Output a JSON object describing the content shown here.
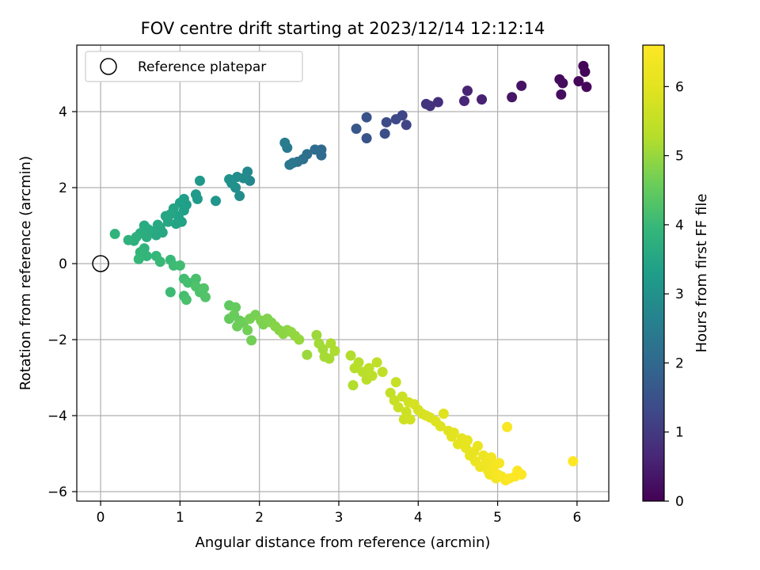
{
  "chart_data": {
    "type": "scatter",
    "title": "FOV centre drift starting at 2023/12/14 12:12:14",
    "xlabel": "Angular distance from reference (arcmin)",
    "ylabel": "Rotation from reference (arcmin)",
    "xlim": [
      -0.3,
      6.4
    ],
    "ylim": [
      -6.25,
      5.75
    ],
    "xticks": [
      0,
      1,
      2,
      3,
      4,
      5,
      6
    ],
    "yticks": [
      -6,
      -4,
      -2,
      0,
      2,
      4
    ],
    "grid": true,
    "legend": {
      "placement": "upper-left",
      "entries": [
        "Reference platepar"
      ]
    },
    "reference_point": {
      "x": 0,
      "y": 0,
      "label": "Reference platepar"
    },
    "colorbar": {
      "label": "Hours from first FF file",
      "colormap": "viridis",
      "range": [
        0,
        6.6
      ],
      "ticks": [
        0,
        1,
        2,
        3,
        4,
        5,
        6
      ]
    },
    "series": [
      {
        "colorscale_value": "hours",
        "points": [
          [
            6.08,
            5.2,
            0.05
          ],
          [
            6.1,
            5.05,
            0.08
          ],
          [
            6.02,
            4.8,
            0.1
          ],
          [
            6.12,
            4.65,
            0.12
          ],
          [
            5.78,
            4.85,
            0.15
          ],
          [
            5.82,
            4.75,
            0.18
          ],
          [
            5.8,
            4.45,
            0.2
          ],
          [
            5.3,
            4.68,
            0.3
          ],
          [
            5.18,
            4.38,
            0.35
          ],
          [
            4.8,
            4.32,
            0.55
          ],
          [
            4.62,
            4.55,
            0.6
          ],
          [
            4.58,
            4.28,
            0.65
          ],
          [
            4.25,
            4.25,
            0.8
          ],
          [
            4.15,
            4.15,
            0.85
          ],
          [
            4.1,
            4.2,
            0.9
          ],
          [
            3.85,
            3.65,
            1.2
          ],
          [
            3.8,
            3.9,
            1.25
          ],
          [
            3.72,
            3.8,
            1.3
          ],
          [
            3.6,
            3.72,
            1.35
          ],
          [
            3.58,
            3.42,
            1.4
          ],
          [
            3.35,
            3.85,
            1.5
          ],
          [
            3.35,
            3.3,
            1.55
          ],
          [
            3.22,
            3.55,
            1.6
          ],
          [
            2.78,
            3.0,
            2.0
          ],
          [
            2.78,
            2.85,
            2.05
          ],
          [
            2.7,
            3.0,
            2.1
          ],
          [
            2.6,
            2.88,
            2.15
          ],
          [
            2.55,
            2.75,
            2.2
          ],
          [
            2.48,
            2.68,
            2.25
          ],
          [
            2.42,
            2.65,
            2.3
          ],
          [
            2.38,
            2.6,
            2.35
          ],
          [
            2.35,
            3.05,
            2.4
          ],
          [
            2.32,
            3.18,
            2.45
          ],
          [
            1.88,
            2.18,
            2.75
          ],
          [
            1.85,
            2.42,
            2.8
          ],
          [
            1.8,
            2.25,
            2.85
          ],
          [
            1.75,
            1.78,
            2.9
          ],
          [
            1.72,
            2.28,
            2.9
          ],
          [
            1.7,
            2.0,
            2.95
          ],
          [
            1.65,
            2.12,
            3.0
          ],
          [
            1.62,
            2.22,
            3.0
          ],
          [
            1.45,
            1.65,
            3.1
          ],
          [
            1.25,
            2.18,
            3.15
          ],
          [
            1.2,
            1.82,
            3.2
          ],
          [
            1.22,
            1.7,
            3.2
          ],
          [
            1.05,
            1.7,
            3.3
          ],
          [
            1.08,
            1.55,
            3.3
          ],
          [
            1.0,
            1.6,
            3.35
          ],
          [
            1.05,
            1.4,
            3.35
          ],
          [
            0.98,
            1.25,
            3.4
          ],
          [
            1.02,
            1.1,
            3.4
          ],
          [
            0.92,
            1.45,
            3.45
          ],
          [
            0.95,
            1.05,
            3.45
          ],
          [
            0.88,
            1.3,
            3.5
          ],
          [
            0.85,
            1.1,
            3.5
          ],
          [
            0.82,
            1.25,
            3.5
          ],
          [
            0.78,
            0.82,
            3.55
          ],
          [
            0.75,
            0.95,
            3.55
          ],
          [
            0.72,
            1.02,
            3.6
          ],
          [
            0.7,
            0.75,
            3.6
          ],
          [
            0.65,
            0.85,
            3.6
          ],
          [
            0.6,
            0.9,
            3.65
          ],
          [
            0.55,
            1.0,
            3.65
          ],
          [
            0.58,
            0.7,
            3.7
          ],
          [
            0.5,
            0.8,
            3.7
          ],
          [
            0.45,
            0.7,
            3.75
          ],
          [
            0.42,
            0.6,
            3.75
          ],
          [
            0.35,
            0.62,
            3.8
          ],
          [
            0.18,
            0.78,
            3.85
          ],
          [
            0.55,
            0.4,
            3.85
          ],
          [
            0.5,
            0.3,
            3.9
          ],
          [
            0.58,
            0.2,
            3.9
          ],
          [
            0.48,
            0.12,
            3.95
          ],
          [
            0.7,
            0.2,
            3.95
          ],
          [
            0.75,
            0.05,
            4.0
          ],
          [
            0.88,
            0.1,
            4.0
          ],
          [
            0.92,
            -0.05,
            4.05
          ],
          [
            0.88,
            -0.75,
            4.05
          ],
          [
            1.0,
            -0.05,
            4.1
          ],
          [
            1.05,
            -0.4,
            4.1
          ],
          [
            1.1,
            -0.5,
            4.15
          ],
          [
            1.05,
            -0.85,
            4.15
          ],
          [
            1.08,
            -0.95,
            4.2
          ],
          [
            1.2,
            -0.4,
            4.2
          ],
          [
            1.2,
            -0.6,
            4.25
          ],
          [
            1.25,
            -0.75,
            4.25
          ],
          [
            1.3,
            -0.65,
            4.3
          ],
          [
            1.32,
            -0.88,
            4.3
          ],
          [
            1.62,
            -1.1,
            4.45
          ],
          [
            1.7,
            -1.15,
            4.5
          ],
          [
            1.62,
            -1.45,
            4.5
          ],
          [
            1.68,
            -1.35,
            4.55
          ],
          [
            1.75,
            -1.5,
            4.55
          ],
          [
            1.72,
            -1.65,
            4.6
          ],
          [
            1.8,
            -1.55,
            4.6
          ],
          [
            1.85,
            -1.75,
            4.65
          ],
          [
            1.9,
            -2.02,
            4.65
          ],
          [
            1.88,
            -1.45,
            4.7
          ],
          [
            1.95,
            -1.35,
            4.7
          ],
          [
            2.02,
            -1.5,
            4.75
          ],
          [
            2.05,
            -1.6,
            4.75
          ],
          [
            2.1,
            -1.45,
            4.8
          ],
          [
            2.15,
            -1.55,
            4.8
          ],
          [
            2.2,
            -1.65,
            4.85
          ],
          [
            2.25,
            -1.75,
            4.85
          ],
          [
            2.3,
            -1.85,
            4.9
          ],
          [
            2.35,
            -1.75,
            4.9
          ],
          [
            2.4,
            -1.8,
            4.95
          ],
          [
            2.45,
            -1.9,
            4.95
          ],
          [
            2.5,
            -2.0,
            5.0
          ],
          [
            2.6,
            -2.4,
            5.05
          ],
          [
            2.72,
            -1.88,
            5.05
          ],
          [
            2.75,
            -2.1,
            5.1
          ],
          [
            2.8,
            -2.25,
            5.1
          ],
          [
            2.82,
            -2.45,
            5.15
          ],
          [
            2.88,
            -2.5,
            5.15
          ],
          [
            2.9,
            -2.1,
            5.2
          ],
          [
            2.95,
            -2.3,
            5.2
          ],
          [
            3.15,
            -2.42,
            5.25
          ],
          [
            3.18,
            -3.2,
            5.25
          ],
          [
            3.2,
            -2.75,
            5.3
          ],
          [
            3.25,
            -2.6,
            5.3
          ],
          [
            3.3,
            -2.85,
            5.35
          ],
          [
            3.35,
            -3.05,
            5.35
          ],
          [
            3.38,
            -2.75,
            5.4
          ],
          [
            3.42,
            -2.95,
            5.4
          ],
          [
            3.48,
            -2.6,
            5.45
          ],
          [
            3.55,
            -2.85,
            5.45
          ],
          [
            3.65,
            -3.4,
            5.5
          ],
          [
            3.7,
            -3.6,
            5.55
          ],
          [
            3.72,
            -3.12,
            5.55
          ],
          [
            3.75,
            -3.78,
            5.6
          ],
          [
            3.8,
            -3.5,
            5.6
          ],
          [
            3.82,
            -4.1,
            5.65
          ],
          [
            3.85,
            -3.9,
            5.65
          ],
          [
            3.88,
            -3.65,
            5.7
          ],
          [
            3.9,
            -4.1,
            5.7
          ],
          [
            3.95,
            -3.7,
            5.75
          ],
          [
            4.0,
            -3.85,
            5.75
          ],
          [
            4.05,
            -3.95,
            5.8
          ],
          [
            4.1,
            -4.0,
            5.8
          ],
          [
            4.15,
            -4.05,
            5.85
          ],
          [
            4.22,
            -4.15,
            5.9
          ],
          [
            4.28,
            -4.28,
            5.9
          ],
          [
            4.32,
            -3.95,
            5.95
          ],
          [
            4.38,
            -4.4,
            5.95
          ],
          [
            4.42,
            -4.55,
            6.0
          ],
          [
            4.45,
            -4.45,
            6.0
          ],
          [
            4.5,
            -4.75,
            6.05
          ],
          [
            4.55,
            -4.6,
            6.05
          ],
          [
            4.6,
            -4.85,
            6.1
          ],
          [
            4.62,
            -4.65,
            6.1
          ],
          [
            4.65,
            -5.05,
            6.15
          ],
          [
            4.7,
            -4.95,
            6.15
          ],
          [
            4.72,
            -5.2,
            6.2
          ],
          [
            4.75,
            -4.8,
            6.2
          ],
          [
            4.78,
            -5.35,
            6.25
          ],
          [
            4.82,
            -5.05,
            6.25
          ],
          [
            4.85,
            -5.25,
            6.3
          ],
          [
            4.88,
            -5.45,
            6.3
          ],
          [
            4.9,
            -5.55,
            6.35
          ],
          [
            4.92,
            -5.1,
            6.35
          ],
          [
            4.95,
            -5.35,
            6.4
          ],
          [
            4.98,
            -5.65,
            6.4
          ],
          [
            5.0,
            -5.55,
            6.45
          ],
          [
            5.02,
            -5.25,
            6.45
          ],
          [
            5.05,
            -5.6,
            6.5
          ],
          [
            5.1,
            -5.7,
            6.5
          ],
          [
            5.12,
            -4.3,
            6.5
          ],
          [
            5.15,
            -5.65,
            6.55
          ],
          [
            5.22,
            -5.6,
            6.55
          ],
          [
            5.25,
            -5.45,
            6.6
          ],
          [
            5.3,
            -5.55,
            6.6
          ],
          [
            5.95,
            -5.2,
            6.6
          ]
        ]
      }
    ]
  }
}
